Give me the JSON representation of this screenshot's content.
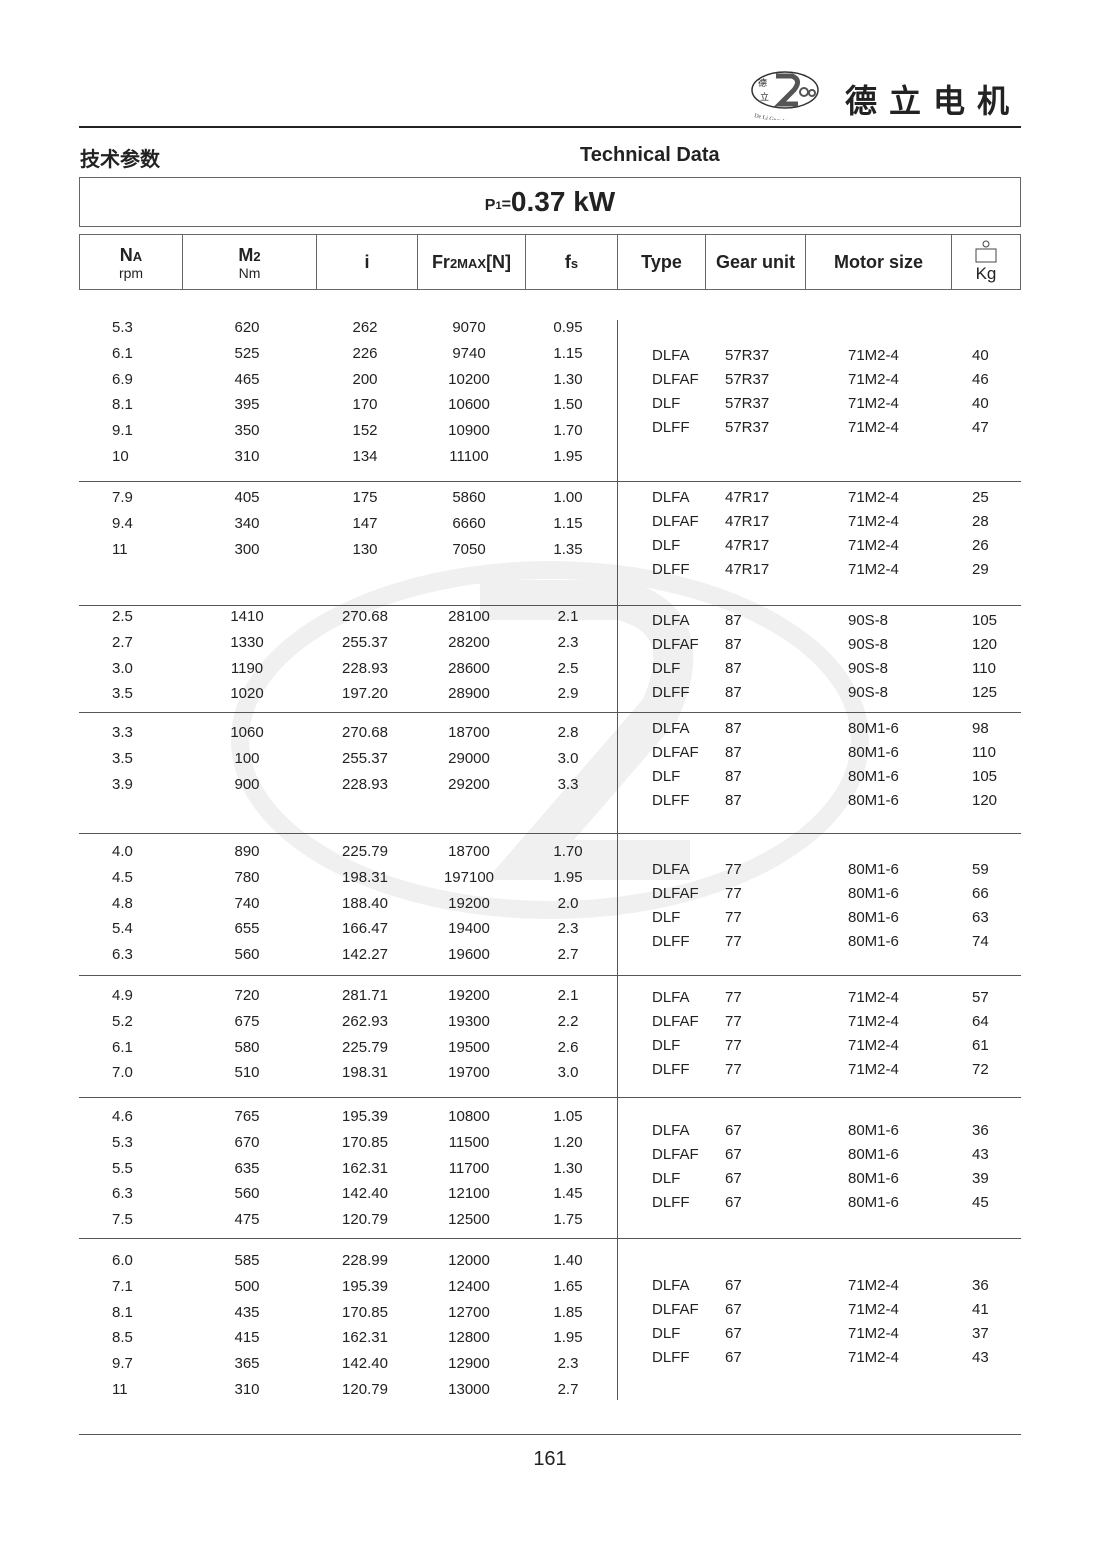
{
  "header": {
    "logo_text": "De Li Gear Motor",
    "logo_chars": "德立",
    "brand_cn": "德立电机"
  },
  "title_cn": "技术参数",
  "title_en": "Technical Data",
  "power": {
    "prefix": "P",
    "sub": "1",
    "eq": "=",
    "value": "0.37 kW"
  },
  "columns": {
    "na": {
      "main": "N",
      "sub": "A",
      "unit": "rpm"
    },
    "m2": {
      "main": "M",
      "sub": "2",
      "unit": "Nm"
    },
    "i": "i",
    "fr": {
      "main": "Fr",
      "sub": "2MAX",
      "tail": "[N]"
    },
    "fs": {
      "main": "f",
      "sub": "s"
    },
    "type": "Type",
    "gear_unit": "Gear unit",
    "motor_size": "Motor size",
    "kg": "Kg"
  },
  "groups": [
    {
      "left": [
        [
          "5.3",
          "620",
          "262",
          "9070",
          "0.95"
        ],
        [
          "6.1",
          "525",
          "226",
          "9740",
          "1.15"
        ],
        [
          "6.9",
          "465",
          "200",
          "10200",
          "1.30"
        ],
        [
          "8.1",
          "395",
          "170",
          "10600",
          "1.50"
        ],
        [
          "9.1",
          "350",
          "152",
          "10900",
          "1.70"
        ],
        [
          "10",
          "310",
          "134",
          "11100",
          "1.95"
        ]
      ],
      "right": [
        [
          "DLFA",
          "57R37",
          "71M2-4",
          "40"
        ],
        [
          "DLFAF",
          "57R37",
          "71M2-4",
          "46"
        ],
        [
          "DLF",
          "57R37",
          "71M2-4",
          "40"
        ],
        [
          "DLFF",
          "57R37",
          "71M2-4",
          "47"
        ]
      ]
    },
    {
      "left": [
        [
          "7.9",
          "405",
          "175",
          "5860",
          "1.00"
        ],
        [
          "9.4",
          "340",
          "147",
          "6660",
          "1.15"
        ],
        [
          "11",
          "300",
          "130",
          "7050",
          "1.35"
        ]
      ],
      "right": [
        [
          "DLFA",
          "47R17",
          "71M2-4",
          "25"
        ],
        [
          "DLFAF",
          "47R17",
          "71M2-4",
          "28"
        ],
        [
          "DLF",
          "47R17",
          "71M2-4",
          "26"
        ],
        [
          "DLFF",
          "47R17",
          "71M2-4",
          "29"
        ]
      ]
    },
    {
      "left": [
        [
          "2.5",
          "1410",
          "270.68",
          "28100",
          "2.1"
        ],
        [
          "2.7",
          "1330",
          "255.37",
          "28200",
          "2.3"
        ],
        [
          "3.0",
          "1190",
          "228.93",
          "28600",
          "2.5"
        ],
        [
          "3.5",
          "1020",
          "197.20",
          "28900",
          "2.9"
        ]
      ],
      "right": [
        [
          "DLFA",
          "87",
          "90S-8",
          "105"
        ],
        [
          "DLFAF",
          "87",
          "90S-8",
          "120"
        ],
        [
          "DLF",
          "87",
          "90S-8",
          "110"
        ],
        [
          "DLFF",
          "87",
          "90S-8",
          "125"
        ]
      ]
    },
    {
      "left": [
        [
          "3.3",
          "1060",
          "270.68",
          "18700",
          "2.8"
        ],
        [
          "3.5",
          "100",
          "255.37",
          "29000",
          "3.0"
        ],
        [
          "3.9",
          "900",
          "228.93",
          "29200",
          "3.3"
        ]
      ],
      "right": [
        [
          "DLFA",
          "87",
          "80M1-6",
          "98"
        ],
        [
          "DLFAF",
          "87",
          "80M1-6",
          "110"
        ],
        [
          "DLF",
          "87",
          "80M1-6",
          "105"
        ],
        [
          "DLFF",
          "87",
          "80M1-6",
          "120"
        ]
      ]
    },
    {
      "left": [
        [
          "4.0",
          "890",
          "225.79",
          "18700",
          "1.70"
        ],
        [
          "4.5",
          "780",
          "198.31",
          "197100",
          "1.95"
        ],
        [
          "4.8",
          "740",
          "188.40",
          "19200",
          "2.0"
        ],
        [
          "5.4",
          "655",
          "166.47",
          "19400",
          "2.3"
        ],
        [
          "6.3",
          "560",
          "142.27",
          "19600",
          "2.7"
        ]
      ],
      "right": [
        [
          "DLFA",
          "77",
          "80M1-6",
          "59"
        ],
        [
          "DLFAF",
          "77",
          "80M1-6",
          "66"
        ],
        [
          "DLF",
          "77",
          "80M1-6",
          "63"
        ],
        [
          "DLFF",
          "77",
          "80M1-6",
          "74"
        ]
      ]
    },
    {
      "left": [
        [
          "4.9",
          "720",
          "281.71",
          "19200",
          "2.1"
        ],
        [
          "5.2",
          "675",
          "262.93",
          "19300",
          "2.2"
        ],
        [
          "6.1",
          "580",
          "225.79",
          "19500",
          "2.6"
        ],
        [
          "7.0",
          "510",
          "198.31",
          "19700",
          "3.0"
        ]
      ],
      "right": [
        [
          "DLFA",
          "77",
          "71M2-4",
          "57"
        ],
        [
          "DLFAF",
          "77",
          "71M2-4",
          "64"
        ],
        [
          "DLF",
          "77",
          "71M2-4",
          "61"
        ],
        [
          "DLFF",
          "77",
          "71M2-4",
          "72"
        ]
      ]
    },
    {
      "left": [
        [
          "4.6",
          "765",
          "195.39",
          "10800",
          "1.05"
        ],
        [
          "5.3",
          "670",
          "170.85",
          "11500",
          "1.20"
        ],
        [
          "5.5",
          "635",
          "162.31",
          "11700",
          "1.30"
        ],
        [
          "6.3",
          "560",
          "142.40",
          "12100",
          "1.45"
        ],
        [
          "7.5",
          "475",
          "120.79",
          "12500",
          "1.75"
        ]
      ],
      "right": [
        [
          "DLFA",
          "67",
          "80M1-6",
          "36"
        ],
        [
          "DLFAF",
          "67",
          "80M1-6",
          "43"
        ],
        [
          "DLF",
          "67",
          "80M1-6",
          "39"
        ],
        [
          "DLFF",
          "67",
          "80M1-6",
          "45"
        ]
      ]
    },
    {
      "left": [
        [
          "6.0",
          "585",
          "228.99",
          "12000",
          "1.40"
        ],
        [
          "7.1",
          "500",
          "195.39",
          "12400",
          "1.65"
        ],
        [
          "8.1",
          "435",
          "170.85",
          "12700",
          "1.85"
        ],
        [
          "8.5",
          "415",
          "162.31",
          "12800",
          "1.95"
        ],
        [
          "9.7",
          "365",
          "142.40",
          "12900",
          "2.3"
        ],
        [
          "11",
          "310",
          "120.79",
          "13000",
          "2.7"
        ]
      ],
      "right": [
        [
          "DLFA",
          "67",
          "71M2-4",
          "36"
        ],
        [
          "DLFAF",
          "67",
          "71M2-4",
          "41"
        ],
        [
          "DLF",
          "67",
          "71M2-4",
          "37"
        ],
        [
          "DLFF",
          "67",
          "71M2-4",
          "43"
        ]
      ]
    }
  ],
  "page_number": "161"
}
